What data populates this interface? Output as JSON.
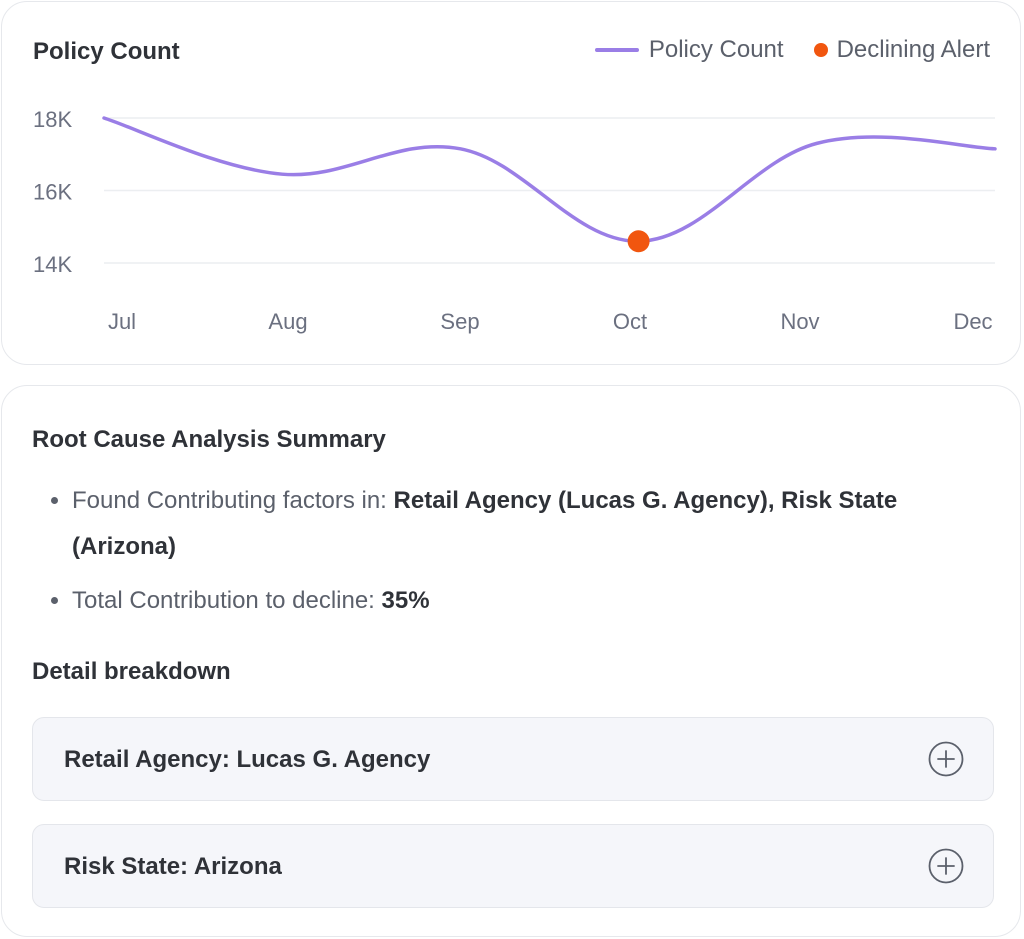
{
  "chart": {
    "title": "Policy Count",
    "legend": [
      {
        "label": "Policy Count",
        "color": "#9a7ee6"
      },
      {
        "label": "Declining Alert",
        "color": "#f1560f"
      }
    ]
  },
  "chart_data": {
    "type": "line",
    "title": "Policy Count",
    "x": [
      "Jul",
      "Aug",
      "Sep",
      "Oct",
      "Nov",
      "Dec"
    ],
    "y_ticks": [
      "18K",
      "16K",
      "14K"
    ],
    "ylim": [
      14000,
      18000
    ],
    "grid": true,
    "legend_placement": "top-right",
    "series": [
      {
        "name": "Policy Count",
        "values": [
          18000,
          16450,
          17150,
          14600,
          17300,
          17150
        ],
        "color": "#9a7ee6"
      }
    ],
    "alerts": [
      {
        "name": "Declining Alert",
        "x": "Oct",
        "value": 14600,
        "color": "#f1560f"
      }
    ]
  },
  "rca": {
    "title": "Root Cause Analysis Summary",
    "bullet1_prefix": "Found Contributing factors in: ",
    "bullet1_bold": "Retail Agency (Lucas G. Agency), Risk State (Arizona)",
    "bullet2_prefix": "Total Contribution to decline: ",
    "bullet2_bold": "35%"
  },
  "detail": {
    "title": "Detail breakdown",
    "items": [
      {
        "label": "Retail Agency: Lucas G. Agency",
        "icon": "plus-circle-icon"
      },
      {
        "label": "Risk State: Arizona",
        "icon": "plus-circle-icon"
      }
    ]
  }
}
